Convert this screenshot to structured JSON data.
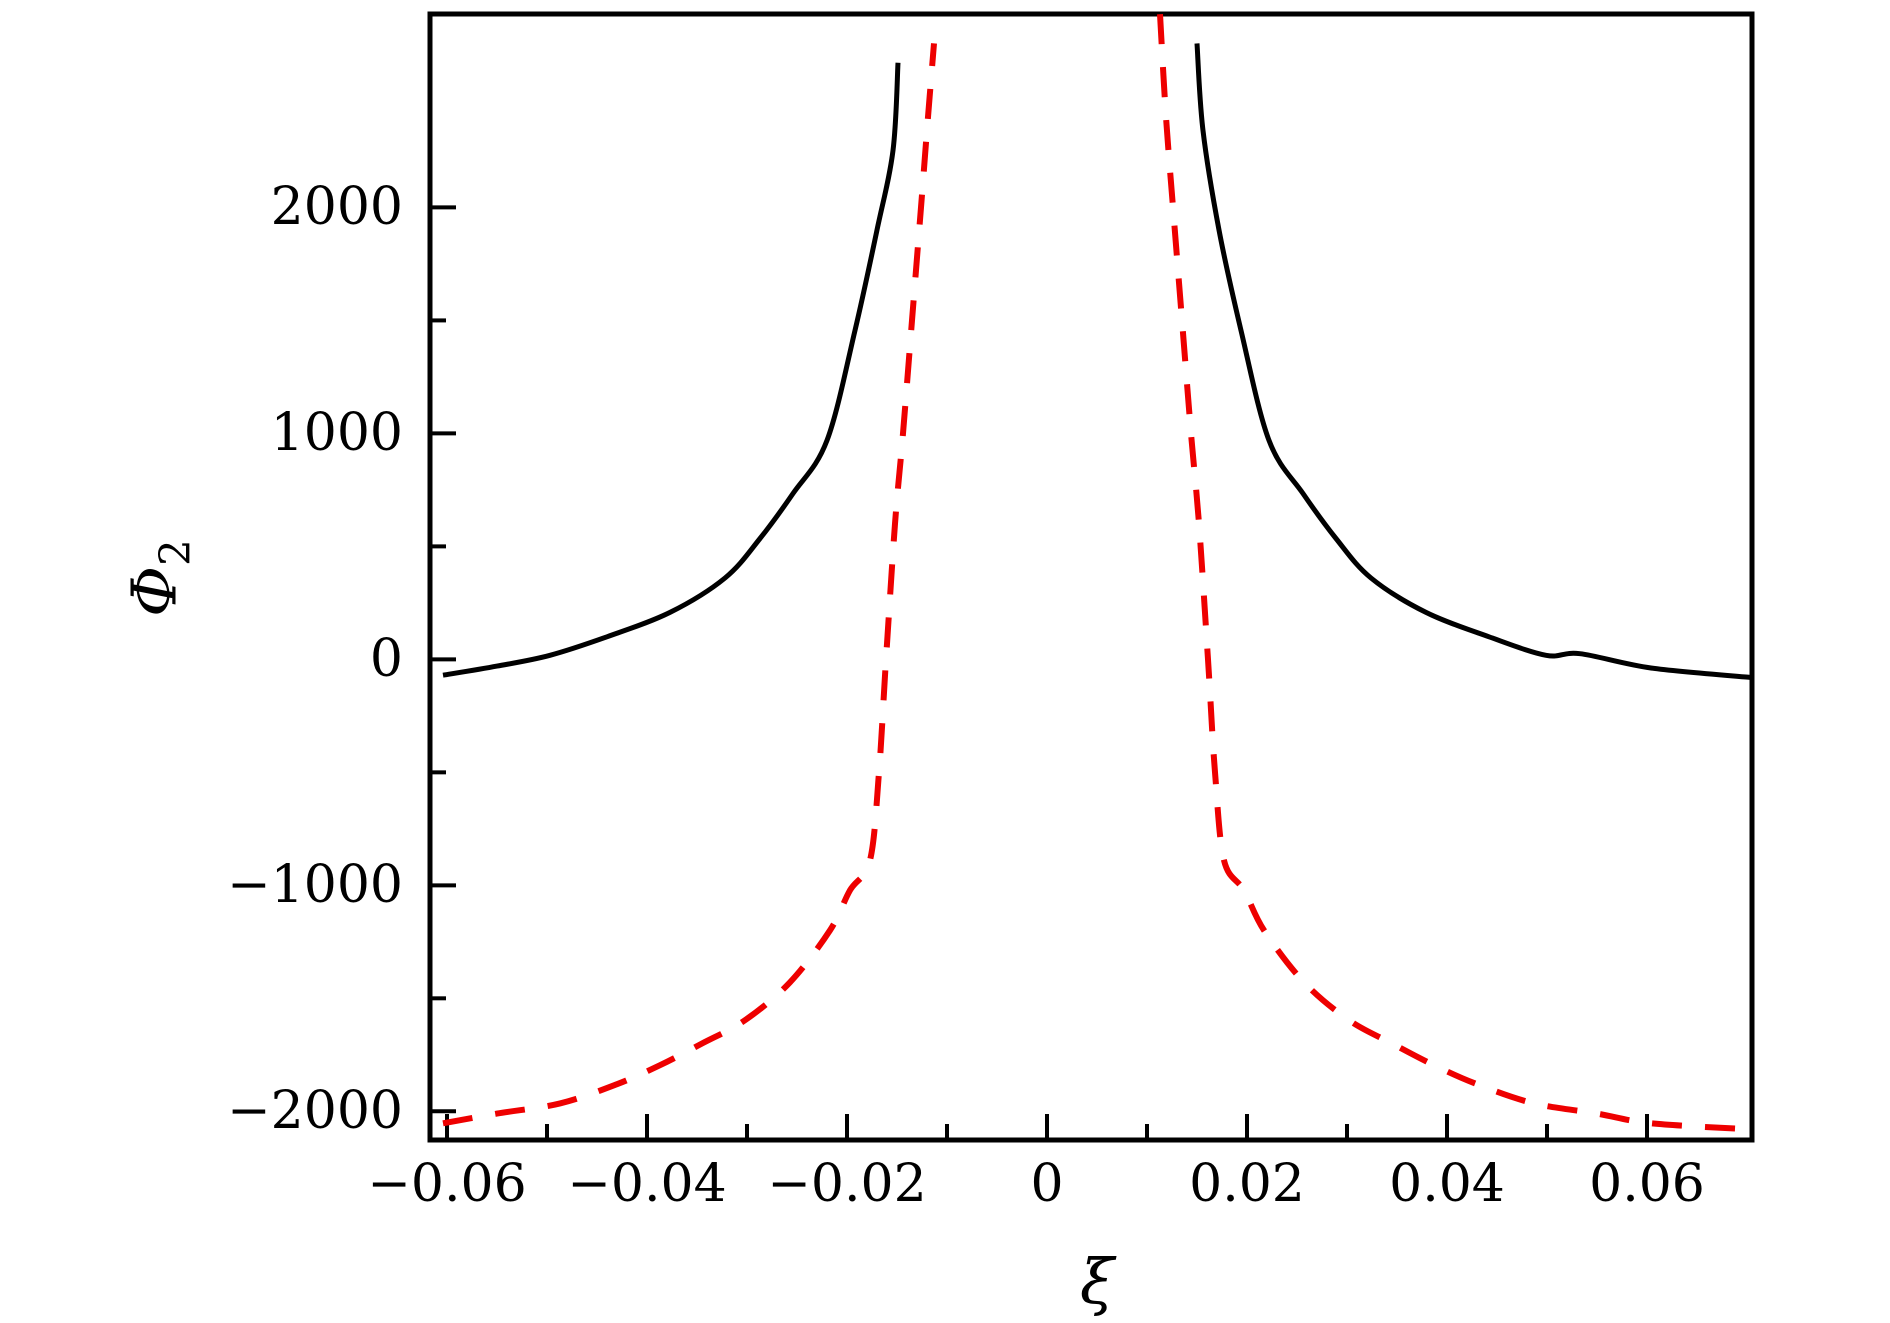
{
  "figure": {
    "title": "",
    "xlabel": "ξ",
    "ylabel_base": "Φ",
    "ylabel_sub": "2",
    "background": "#ffffff",
    "axis_color": "#000000"
  },
  "chart_data": {
    "type": "line",
    "title": "",
    "xlabel": "ξ",
    "ylabel": "Φ₂",
    "xlim": [
      -0.0617,
      0.0705
    ],
    "ylim": [
      -2127,
      2856
    ],
    "grid": false,
    "legend_position": "none",
    "x_major_ticks": [
      -0.06,
      -0.04,
      -0.02,
      0,
      0.02,
      0.04,
      0.06
    ],
    "x_major_labels": [
      "−0.06",
      "−0.04",
      "−0.02",
      "0",
      "0.02",
      "0.04",
      "0.06"
    ],
    "x_minor_ticks": [
      -0.05,
      -0.03,
      -0.01,
      0.01,
      0.03,
      0.05
    ],
    "y_major_ticks": [
      -2000,
      -1000,
      0,
      1000,
      2000
    ],
    "y_major_labels": [
      "−2000",
      "−1000",
      "0",
      "1000",
      "2000"
    ],
    "y_minor_ticks": [
      -1500,
      -500,
      500,
      1500
    ],
    "series": [
      {
        "name": "black-solid-left-branch",
        "color": "#000000",
        "linestyle": "solid",
        "linewidth": 5,
        "points": [
          [
            -0.0604,
            -70
          ],
          [
            -0.055,
            -30
          ],
          [
            -0.0497,
            18
          ],
          [
            -0.044,
            100
          ],
          [
            -0.0377,
            208
          ],
          [
            -0.0322,
            360
          ],
          [
            -0.0287,
            535
          ],
          [
            -0.0254,
            734
          ],
          [
            -0.022,
            969
          ],
          [
            -0.0192,
            1456
          ],
          [
            -0.017,
            1900
          ],
          [
            -0.0154,
            2252
          ],
          [
            -0.0149,
            2640
          ]
        ]
      },
      {
        "name": "black-solid-right-branch",
        "color": "#000000",
        "linestyle": "solid",
        "linewidth": 5,
        "points": [
          [
            0.015,
            2726
          ],
          [
            0.0156,
            2340
          ],
          [
            0.0172,
            1900
          ],
          [
            0.0194,
            1456
          ],
          [
            0.0222,
            969
          ],
          [
            0.0256,
            734
          ],
          [
            0.0289,
            535
          ],
          [
            0.0324,
            360
          ],
          [
            0.0379,
            208
          ],
          [
            0.0442,
            100
          ],
          [
            0.0499,
            18
          ],
          [
            0.0533,
            25
          ],
          [
            0.0604,
            -38
          ],
          [
            0.0703,
            -80
          ]
        ]
      },
      {
        "name": "red-dashed-left-branch",
        "color": "#ee0000",
        "linestyle": "dashed",
        "linewidth": 6,
        "points": [
          [
            -0.0604,
            -2053
          ],
          [
            -0.055,
            -2010
          ],
          [
            -0.0487,
            -1965
          ],
          [
            -0.043,
            -1880
          ],
          [
            -0.0387,
            -1796
          ],
          [
            -0.0345,
            -1700
          ],
          [
            -0.0302,
            -1597
          ],
          [
            -0.0257,
            -1429
          ],
          [
            -0.0217,
            -1199
          ],
          [
            -0.0197,
            -1022
          ],
          [
            -0.0177,
            -889
          ],
          [
            -0.0168,
            -500
          ],
          [
            -0.0161,
            0
          ],
          [
            -0.0152,
            600
          ],
          [
            -0.0144,
            1000
          ],
          [
            -0.0135,
            1500
          ],
          [
            -0.0126,
            2000
          ],
          [
            -0.0119,
            2400
          ],
          [
            -0.0113,
            2726
          ]
        ]
      },
      {
        "name": "red-dashed-right-branch",
        "color": "#ee0000",
        "linestyle": "dashed",
        "linewidth": 6,
        "points": [
          [
            0.0113,
            2855
          ],
          [
            0.0119,
            2400
          ],
          [
            0.0126,
            2000
          ],
          [
            0.0135,
            1500
          ],
          [
            0.0144,
            1000
          ],
          [
            0.0152,
            600
          ],
          [
            0.0161,
            0
          ],
          [
            0.0168,
            -500
          ],
          [
            0.0177,
            -889
          ],
          [
            0.0197,
            -1022
          ],
          [
            0.0217,
            -1199
          ],
          [
            0.0257,
            -1429
          ],
          [
            0.0302,
            -1597
          ],
          [
            0.0345,
            -1700
          ],
          [
            0.0387,
            -1796
          ],
          [
            0.043,
            -1880
          ],
          [
            0.0487,
            -1965
          ],
          [
            0.055,
            -2010
          ],
          [
            0.0604,
            -2053
          ],
          [
            0.0705,
            -2080
          ]
        ]
      }
    ]
  }
}
